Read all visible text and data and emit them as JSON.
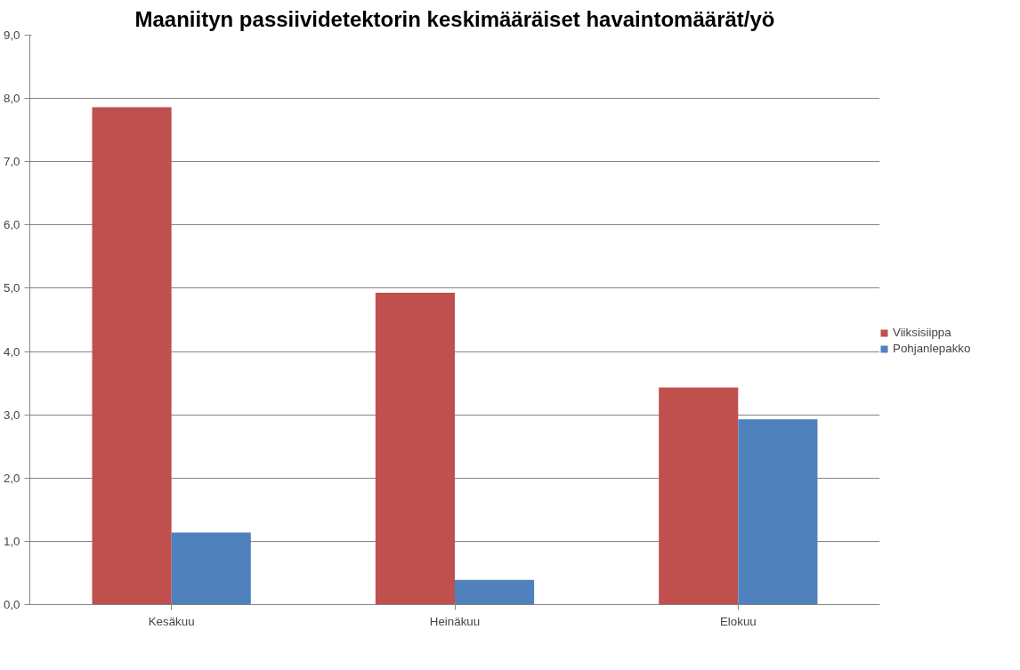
{
  "chart_data": {
    "type": "bar",
    "title": "Maaniityn passiividetektorin keskimääräiset havaintomäärät/yö",
    "categories": [
      "Kesäkuu",
      "Heinäkuu",
      "Elokuu"
    ],
    "series": [
      {
        "name": "Viiksisiippa",
        "color": "#c0504d",
        "values": [
          7.86,
          4.93,
          3.43
        ]
      },
      {
        "name": "Pohjanlepakko",
        "color": "#4f81bd",
        "values": [
          1.14,
          0.39,
          2.93
        ]
      }
    ],
    "ylim": [
      0,
      9
    ],
    "yticks": [
      {
        "value": 0,
        "label": "0,0"
      },
      {
        "value": 1,
        "label": "1,0"
      },
      {
        "value": 2,
        "label": "2,0"
      },
      {
        "value": 3,
        "label": "3,0"
      },
      {
        "value": 4,
        "label": "4,0"
      },
      {
        "value": 5,
        "label": "5,0"
      },
      {
        "value": 6,
        "label": "6,0"
      },
      {
        "value": 7,
        "label": "7,0"
      },
      {
        "value": 8,
        "label": "8,0"
      },
      {
        "value": 9,
        "label": "9,0"
      }
    ],
    "grid": "y",
    "legend": "right"
  }
}
